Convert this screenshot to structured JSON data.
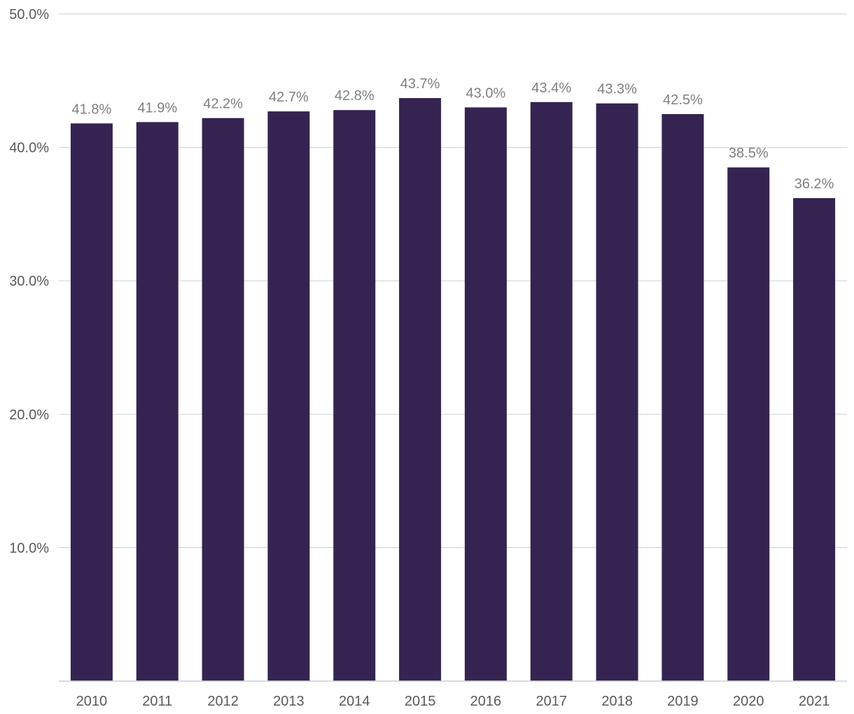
{
  "chart_data": {
    "type": "bar",
    "title": "",
    "xlabel": "",
    "ylabel": "",
    "categories": [
      "2010",
      "2011",
      "2012",
      "2013",
      "2014",
      "2015",
      "2016",
      "2017",
      "2018",
      "2019",
      "2020",
      "2021"
    ],
    "values": [
      41.8,
      41.9,
      42.2,
      42.7,
      42.8,
      43.7,
      43.0,
      43.4,
      43.3,
      42.5,
      38.5,
      36.2
    ],
    "value_labels": [
      "41.8%",
      "41.9%",
      "42.2%",
      "42.7%",
      "42.8%",
      "43.7%",
      "43.0%",
      "43.4%",
      "43.3%",
      "42.5%",
      "38.5%",
      "36.2%"
    ],
    "ylim": [
      0,
      50
    ],
    "y_ticks": [
      10,
      20,
      30,
      40,
      50
    ],
    "y_tick_labels": [
      "10.0%",
      "20.0%",
      "30.0%",
      "40.0%",
      "50.0%"
    ],
    "grid": true,
    "legend": "none",
    "colors": {
      "bar": "#352451",
      "grid": "#d0d5dd",
      "axis": "#c9d0da",
      "tick_text": "#595959",
      "label_text": "#7f7f7f"
    }
  }
}
